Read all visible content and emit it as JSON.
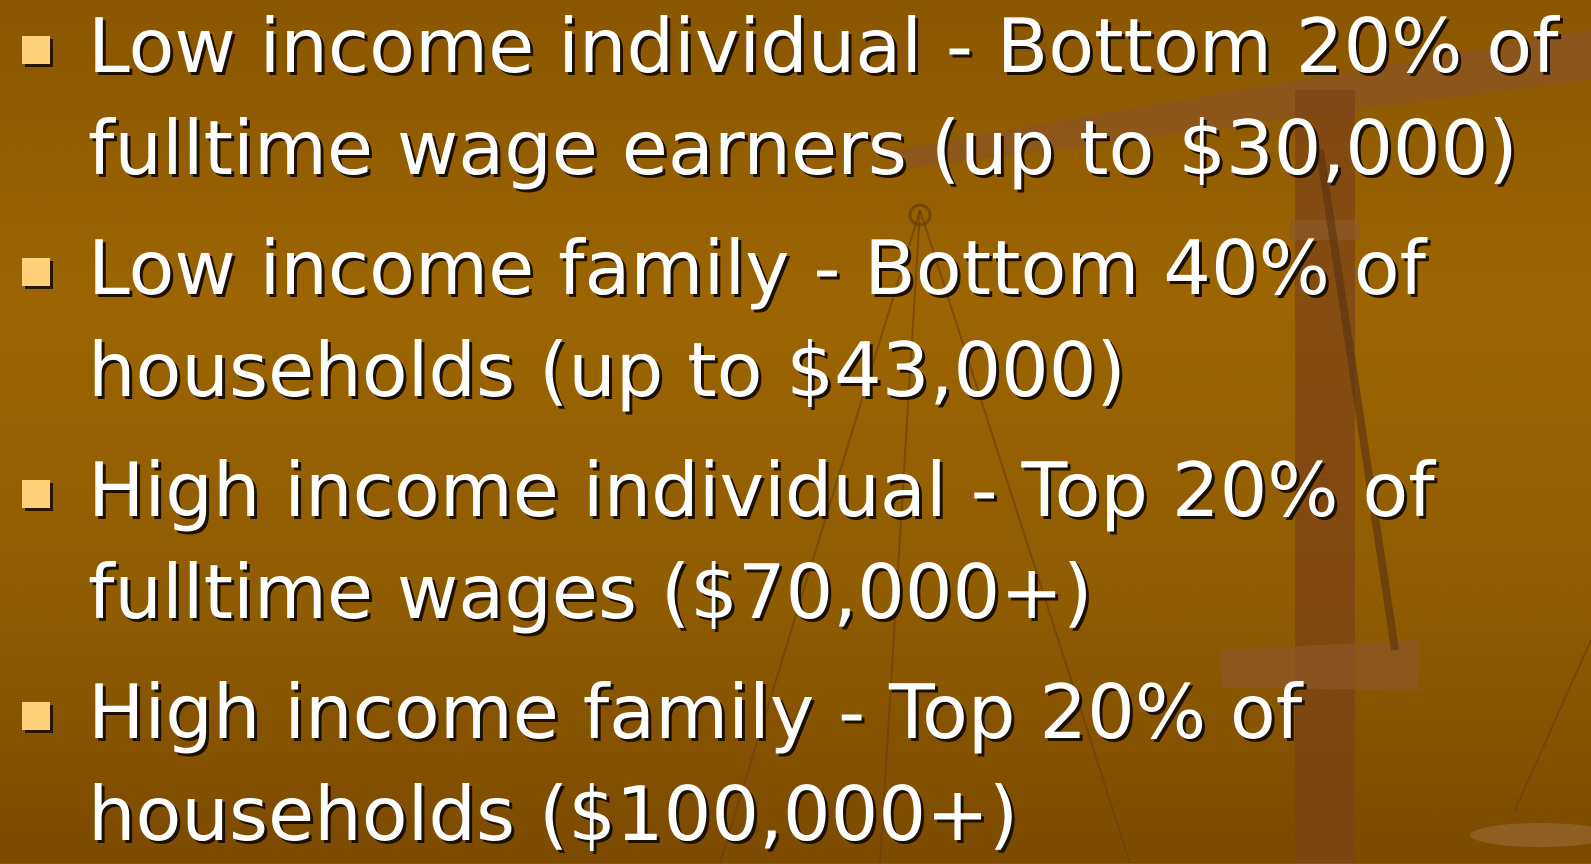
{
  "bullets": [
    [
      "Low income individual - Bottom 20% of",
      "fulltime wage earners (up to $30,000)"
    ],
    [
      "Low income family - Bottom 40% of",
      "households (up to $43,000)"
    ],
    [
      "High income individual - Top 20% of",
      "fulltime wages ($70,000+)"
    ],
    [
      "High income family - Top 20% of",
      "households ($100,000+)"
    ]
  ]
}
